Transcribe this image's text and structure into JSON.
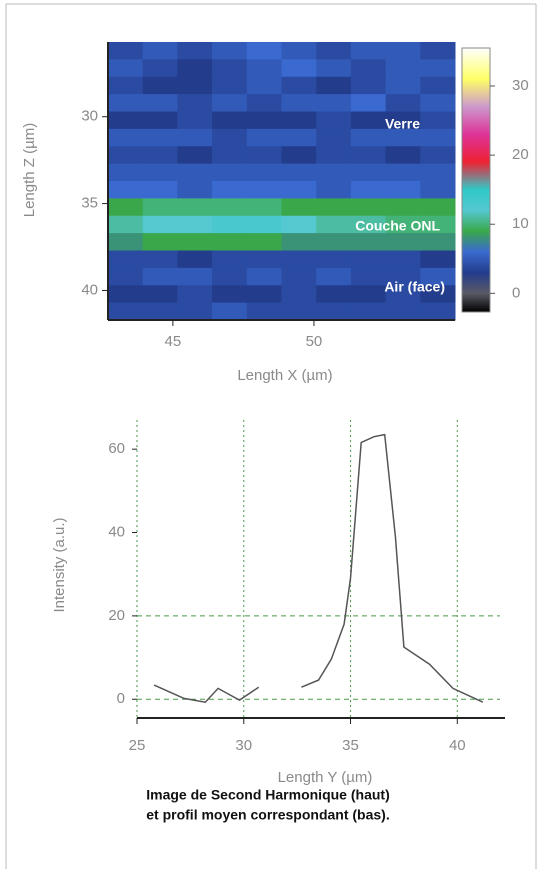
{
  "chart_data": [
    {
      "type": "heatmap",
      "ylabel": "Length Z (µm)",
      "xlabel": "Length X (µm)",
      "xlim": [
        42.7,
        55
      ],
      "xticks": [
        45,
        50
      ],
      "ylim": [
        25.7,
        41.7
      ],
      "yticks": [
        30,
        35,
        40
      ],
      "clim": [
        -2.7,
        35.5
      ],
      "cticks": [
        0,
        10,
        20,
        30
      ],
      "colorscale": [
        [
          -2.7,
          "#000000"
        ],
        [
          0,
          "#5a5a66"
        ],
        [
          3,
          "#233c8c"
        ],
        [
          6,
          "#3a6ad0"
        ],
        [
          9,
          "#3aa84a"
        ],
        [
          12,
          "#55c8d0"
        ],
        [
          15,
          "#30c8c8"
        ],
        [
          19,
          "#ee2233"
        ],
        [
          23,
          "#dd3399"
        ],
        [
          27,
          "#cc99cc"
        ],
        [
          31,
          "#ffff66"
        ],
        [
          35.5,
          "#ffffff"
        ]
      ],
      "annotations": [
        "Verre",
        "Couche ONL",
        "Air (face)"
      ],
      "values": [
        [
          4,
          5,
          4,
          5,
          6,
          5,
          4,
          5,
          5,
          4
        ],
        [
          5,
          4,
          3,
          4,
          5,
          6,
          5,
          4,
          5,
          5
        ],
        [
          4,
          3,
          3,
          4,
          5,
          4,
          3,
          4,
          5,
          4
        ],
        [
          5,
          5,
          4,
          5,
          4,
          5,
          5,
          6,
          4,
          5
        ],
        [
          3,
          3,
          4,
          3,
          3,
          3,
          4,
          3,
          3,
          4
        ],
        [
          5,
          5,
          5,
          4,
          5,
          5,
          4,
          5,
          5,
          5
        ],
        [
          4,
          4,
          3,
          4,
          4,
          3,
          4,
          4,
          3,
          4
        ],
        [
          5,
          5,
          5,
          5,
          5,
          5,
          5,
          5,
          5,
          5
        ],
        [
          6,
          6,
          5,
          6,
          6,
          6,
          5,
          6,
          6,
          5
        ],
        [
          9,
          10,
          10,
          10,
          10,
          9,
          9,
          9,
          9,
          9
        ],
        [
          11,
          12,
          12,
          13,
          13,
          12,
          11,
          11,
          10,
          10
        ],
        [
          8,
          9,
          9,
          9,
          9,
          8,
          8,
          8,
          8,
          8
        ],
        [
          4,
          4,
          3,
          4,
          4,
          4,
          4,
          4,
          4,
          3
        ],
        [
          4,
          5,
          5,
          4,
          5,
          4,
          5,
          4,
          4,
          5
        ],
        [
          3,
          3,
          4,
          3,
          3,
          4,
          3,
          3,
          4,
          3
        ],
        [
          4,
          4,
          4,
          5,
          4,
          4,
          4,
          4,
          4,
          4
        ]
      ]
    },
    {
      "type": "line",
      "ylabel": "Intensity (a.u.)",
      "xlabel": "Length Y (µm)",
      "xlim": [
        25,
        42
      ],
      "xticks": [
        25,
        30,
        35,
        40
      ],
      "ylim": [
        -4.5,
        67
      ],
      "yticks": [
        0,
        20,
        40,
        60
      ],
      "hlines": [
        0,
        20
      ],
      "grid": true,
      "series": [
        {
          "name": "profil",
          "color": "#555555",
          "x": [
            25.8,
            27.2,
            28.2,
            28.8,
            29.8,
            30.7,
            31.7,
            32.7,
            33.5,
            34.1,
            34.7,
            35.0,
            35.5,
            36.1,
            36.6,
            37.1,
            37.5,
            38.7,
            39.8,
            41.2
          ],
          "values": [
            3.4,
            0.2,
            -0.7,
            2.6,
            -0.2,
            2.9,
            null,
            2.9,
            4.6,
            9.6,
            18,
            29,
            61.6,
            63,
            63.5,
            39,
            12.5,
            8.4,
            2.6,
            -0.7
          ]
        }
      ]
    },
    {
      "type": "caption",
      "lines": [
        "Image de Second Harmonique (haut)",
        "et profil moyen correspondant (bas)."
      ]
    }
  ]
}
